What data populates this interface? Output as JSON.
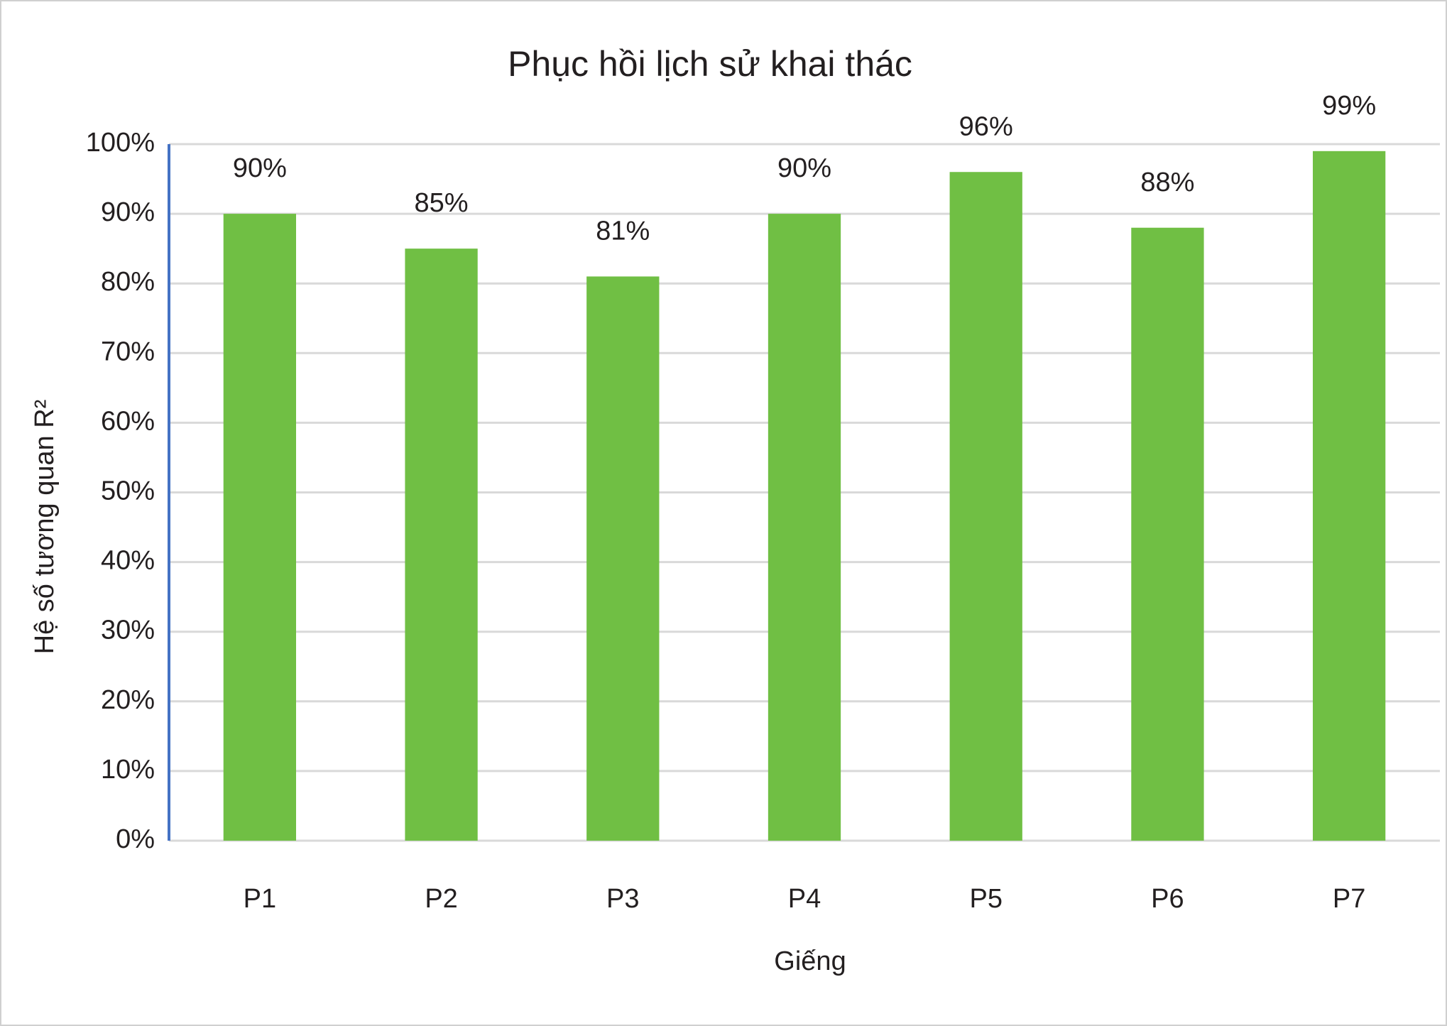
{
  "chart_data": {
    "type": "bar",
    "title": "Phục hồi lịch sử khai thác",
    "x_label": "Giếng",
    "y_label": "Hệ số tương quan R²",
    "categories": [
      "P1",
      "P2",
      "P3",
      "P4",
      "P5",
      "P6",
      "P7"
    ],
    "values": [
      90,
      85,
      81,
      90,
      96,
      88,
      99
    ],
    "value_labels": [
      "90%",
      "85%",
      "81%",
      "90%",
      "96%",
      "88%",
      "99%"
    ],
    "color": "#70bf44",
    "ylim": [
      0,
      100
    ],
    "yticks": [
      {
        "value": 0,
        "label": "0%"
      },
      {
        "value": 10,
        "label": "10%"
      },
      {
        "value": 20,
        "label": "20%"
      },
      {
        "value": 30,
        "label": "30%"
      },
      {
        "value": 40,
        "label": "40%"
      },
      {
        "value": 50,
        "label": "50%"
      },
      {
        "value": 60,
        "label": "60%"
      },
      {
        "value": 70,
        "label": "70%"
      },
      {
        "value": 80,
        "label": "80%"
      },
      {
        "value": 90,
        "label": "90%"
      },
      {
        "value": 100,
        "label": "100%"
      }
    ],
    "grid": true
  }
}
